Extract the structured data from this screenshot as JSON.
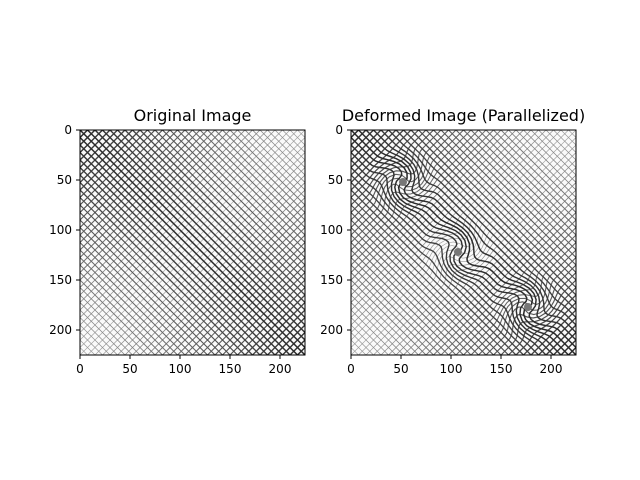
{
  "chart_data": [
    {
      "type": "image",
      "title": "Original Image",
      "xlim": [
        0,
        225
      ],
      "ylim": [
        225,
        0
      ],
      "x_ticks": [
        0,
        50,
        100,
        150,
        200
      ],
      "y_ticks": [
        0,
        50,
        100,
        150,
        200
      ],
      "colormap": "gray",
      "content": "diagonal crosshatch line pattern"
    },
    {
      "type": "image",
      "title": "Deformed Image (Parallelized)",
      "xlim": [
        0,
        225
      ],
      "ylim": [
        225,
        0
      ],
      "x_ticks": [
        0,
        50,
        100,
        150,
        200
      ],
      "y_ticks": [
        0,
        50,
        100,
        150,
        200
      ],
      "colormap": "gray",
      "content": "diagonal crosshatch line pattern with swirl distortions",
      "swirl_centers": [
        [
          52,
          52
        ],
        [
          107,
          122
        ],
        [
          177,
          177
        ]
      ]
    }
  ]
}
